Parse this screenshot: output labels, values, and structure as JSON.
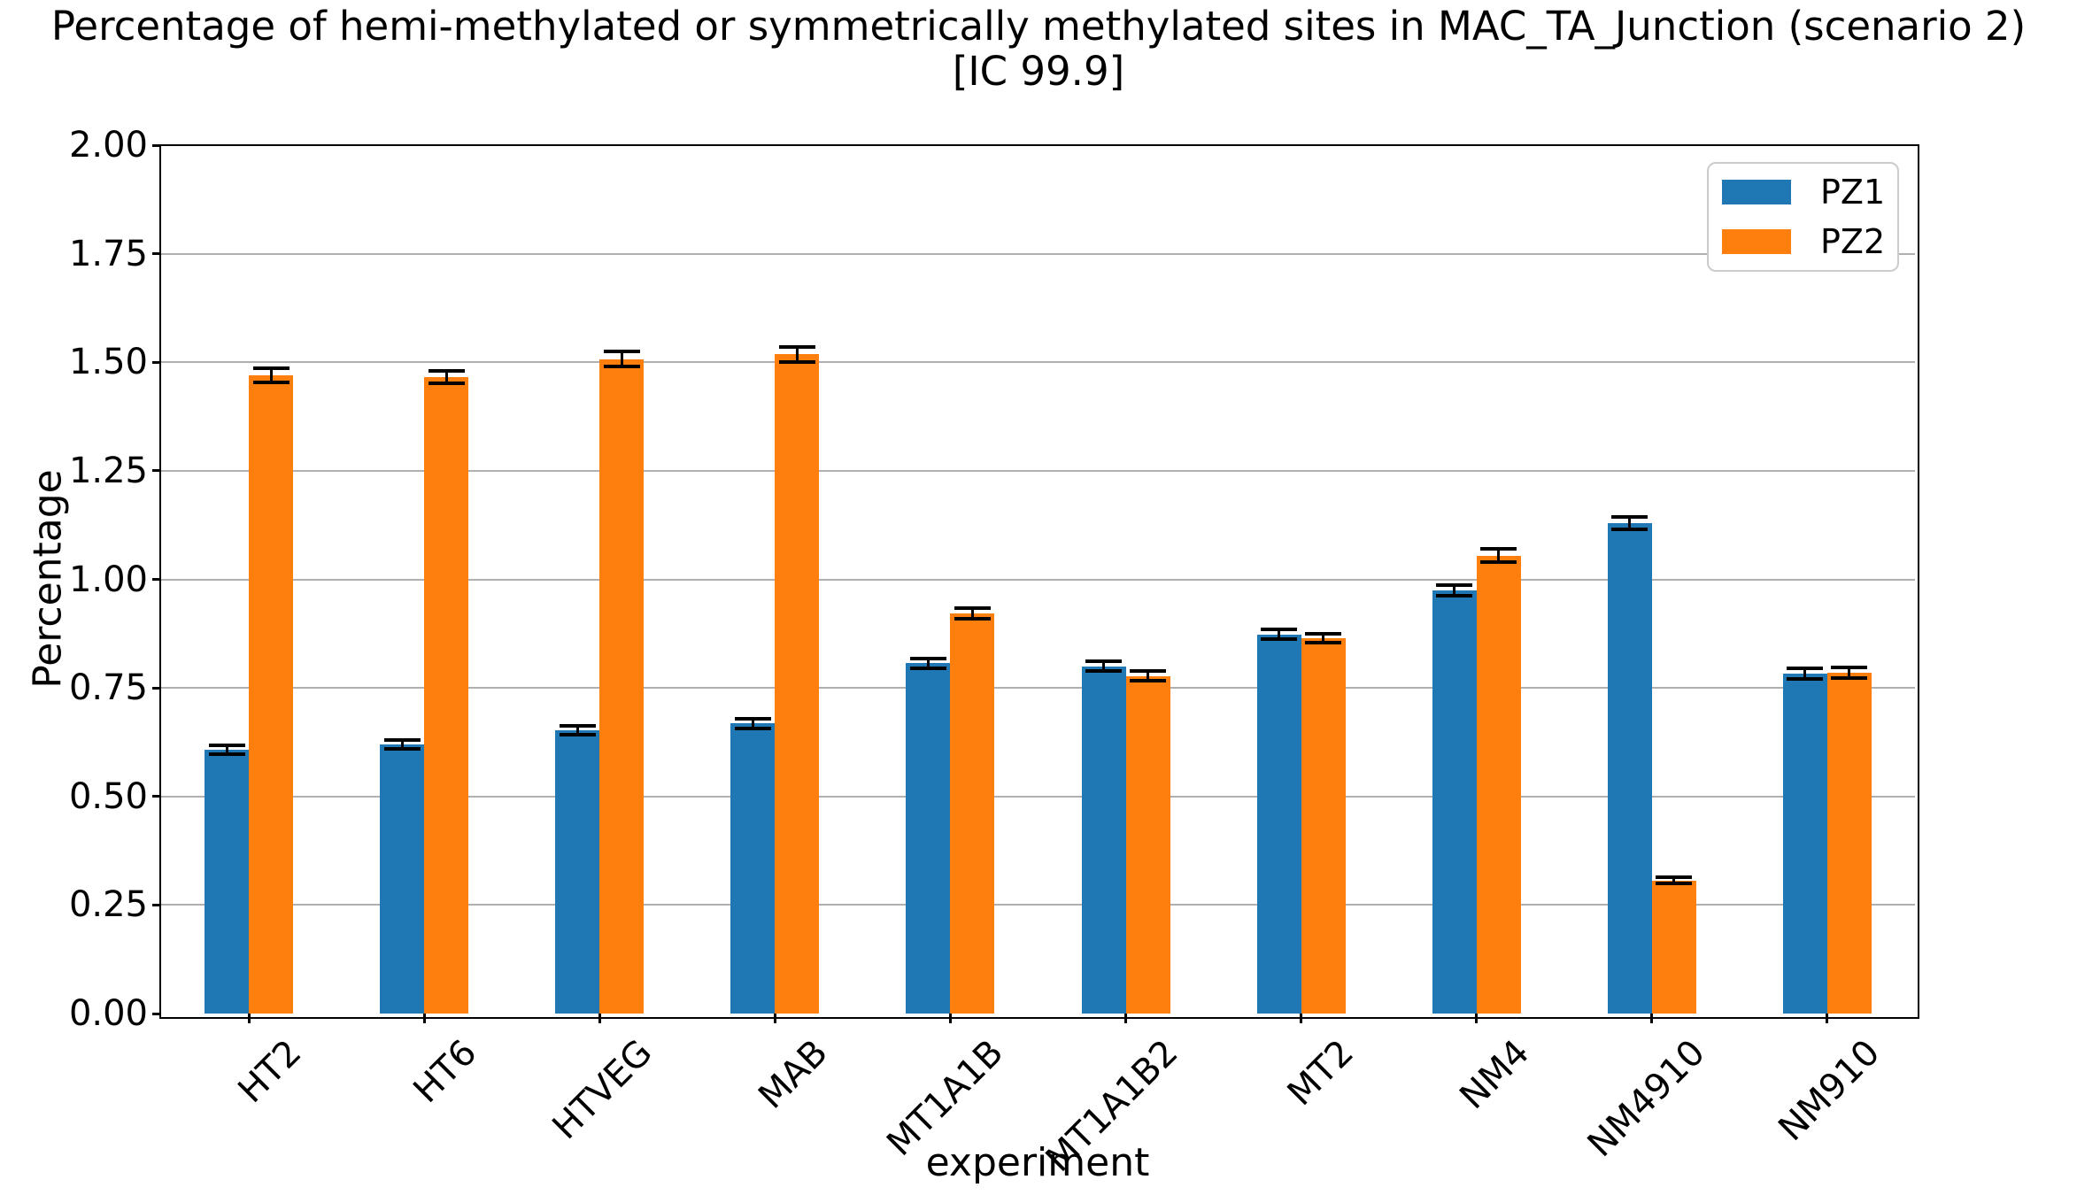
{
  "title": {
    "line1": "Percentage of hemi-methylated or symmetrically methylated sites in MAC_TA_Junction (scenario 2)",
    "line2": "[IC 99.9]"
  },
  "chart_data": {
    "type": "bar",
    "title": "Percentage of hemi-methylated or symmetrically methylated sites in MAC_TA_Junction (scenario 2) [IC 99.9]",
    "xlabel": "experiment",
    "ylabel": "Percentage",
    "ylim": [
      0.0,
      2.0
    ],
    "yticks": [
      0.0,
      0.25,
      0.5,
      0.75,
      1.0,
      1.25,
      1.5,
      1.75,
      2.0
    ],
    "ytick_labels": [
      "0.00",
      "0.25",
      "0.50",
      "0.75",
      "1.00",
      "1.25",
      "1.50",
      "1.75",
      "2.00"
    ],
    "grid": "horizontal",
    "grid_color": "#b0b0b0",
    "error_bar_color": "#000000",
    "legend_position": "upper right",
    "categories": [
      "HT2",
      "HT6",
      "HTVEG",
      "MAB",
      "MT1A1B",
      "MT1A1B2",
      "MT2",
      "NM4",
      "NM4910",
      "NM910"
    ],
    "series": [
      {
        "name": "PZ1",
        "color": "#1f77b4",
        "values": [
          0.607,
          0.62,
          0.653,
          0.668,
          0.807,
          0.8,
          0.873,
          0.974,
          1.13,
          0.783
        ],
        "errors": [
          0.01,
          0.01,
          0.01,
          0.011,
          0.011,
          0.011,
          0.011,
          0.012,
          0.014,
          0.012
        ]
      },
      {
        "name": "PZ2",
        "color": "#ff7f0e",
        "values": [
          1.47,
          1.466,
          1.507,
          1.518,
          0.922,
          0.777,
          0.864,
          1.055,
          0.306,
          0.785
        ],
        "errors": [
          0.016,
          0.015,
          0.017,
          0.018,
          0.012,
          0.011,
          0.01,
          0.015,
          0.007,
          0.012
        ]
      }
    ]
  }
}
